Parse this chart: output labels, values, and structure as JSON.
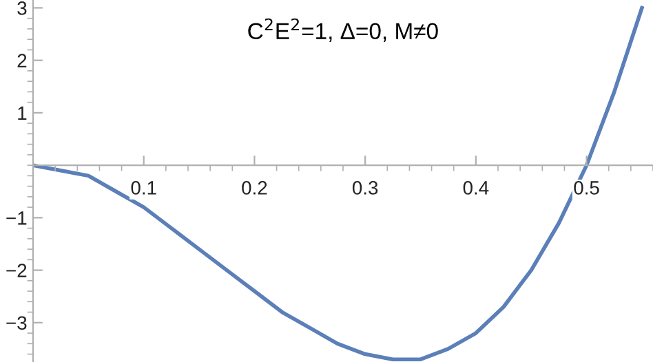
{
  "chart_data": {
    "type": "line",
    "title": "C$^{2}$E$^{2}$=1, Δ=0, M≠0",
    "x": [
      0,
      0.025,
      0.05,
      0.075,
      0.1,
      0.125,
      0.15,
      0.175,
      0.2,
      0.225,
      0.25,
      0.275,
      0.3,
      0.325,
      0.35,
      0.375,
      0.4,
      0.425,
      0.45,
      0.475,
      0.5,
      0.525,
      0.55
    ],
    "series": [
      {
        "color": "#5b7fb8",
        "values": [
          0,
          -0.1,
          -0.2,
          -0.5,
          -0.8,
          -1.2,
          -1.6,
          -2.0,
          -2.4,
          -2.8,
          -3.1,
          -3.4,
          -3.6,
          -3.7,
          -3.7,
          -3.5,
          -3.2,
          -2.7,
          -2.0,
          -1.1,
          0,
          1.4,
          3.0
        ]
      }
    ],
    "xlim": [
      0,
      0.56
    ],
    "ylim": [
      -3.75,
      3.15
    ],
    "xticks": [
      0.1,
      0.2,
      0.3,
      0.4,
      0.5
    ],
    "yticks": [
      {
        "value": -3,
        "label": "−3"
      },
      {
        "value": -2,
        "label": "−2"
      },
      {
        "value": -1,
        "label": "−1"
      },
      1,
      2,
      3
    ],
    "grid": false,
    "legend": false,
    "marker": "none",
    "line_style": "solid"
  }
}
